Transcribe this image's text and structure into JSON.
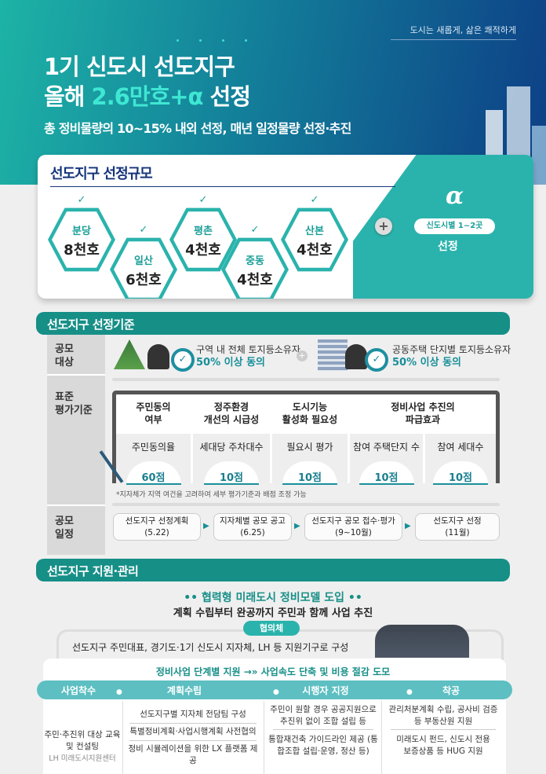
{
  "header": {
    "tagline": "도시는 새롭게, 삶은 쾌적하게",
    "title_line1": "1기 신도시 선도지구",
    "title_line2_prefix": "올해",
    "title_line2_highlight": "2.6만호+α",
    "title_line2_suffix": "선정",
    "subtitle": "총 정비물량의 10~15% 내외 선정, 매년 일정물량 선정·추진"
  },
  "scale": {
    "title": "선도지구 선정규모",
    "districts": [
      {
        "name": "분당",
        "value": "8천호"
      },
      {
        "name": "일산",
        "value": "6천호"
      },
      {
        "name": "평촌",
        "value": "4천호"
      },
      {
        "name": "중동",
        "value": "4천호"
      },
      {
        "name": "산본",
        "value": "4천호"
      }
    ],
    "alpha_symbol": "α",
    "alpha_pill": "신도시별 1~2곳",
    "alpha_label": "선정"
  },
  "criteria": {
    "title": "선도지구 선정기준",
    "target_label": [
      "공모",
      "대상"
    ],
    "targets": [
      {
        "text": "구역 내 전체 토지등소유자",
        "highlight": "50% 이상 동의"
      },
      {
        "text": "공동주택 단지별 토지등소유자",
        "highlight": "50% 이상 동의"
      }
    ],
    "eval_label": [
      "표준",
      "평가기준"
    ],
    "headers": [
      [
        "주민동의",
        "여부"
      ],
      [
        "정주환경",
        "개선의 시급성"
      ],
      [
        "도시기능",
        "활성화 필요성"
      ],
      [
        "정비사업 추진의",
        "파급효과"
      ]
    ],
    "items": [
      {
        "name": "주민동의율",
        "score": "60점"
      },
      {
        "name": "세대당 주차대수",
        "score": "10점"
      },
      {
        "name": "필요시 평가",
        "score": "10점"
      },
      {
        "name": "참여 주택단지 수",
        "score": "10점"
      },
      {
        "name": "참여 세대수",
        "score": "10점"
      }
    ],
    "note": "*지자체가 지역 여건을 고려하여 세부 평가기준과 배점 조정 가능",
    "schedule_label": [
      "공모",
      "일정"
    ],
    "schedule": [
      {
        "step": "선도지구 선정계획",
        "date": "(5.22)"
      },
      {
        "step": "지자체별 공모 공고",
        "date": "(6.25)"
      },
      {
        "step": "선도지구 공모 접수·평가",
        "date": "(9~10월)"
      },
      {
        "step": "선도지구 선정",
        "date": "(11월)"
      }
    ]
  },
  "support": {
    "title": "선도지구 지원·관리",
    "headline": "협력형 미래도시 정비모델 도입",
    "subheadline": "계획 수립부터 완공까지 주민과 함께 사업 추진",
    "council_pill": "협의체",
    "council_desc": "선도지구 주민대표, 경기도·1기 신도시 지자체, LH 등 지원기구로 구성",
    "stage_head_left": "정비사업 단계별 지원",
    "stage_head_arrow": "→»",
    "stage_head_right": "사업속도 단축 및 비용 절감 도모",
    "stages": [
      {
        "name": "사업착수",
        "items": [
          "주민·추진위 대상 교육 및 컨설팅"
        ],
        "sub": "LH 미래도시지원센터"
      },
      {
        "name": "계획수립",
        "items": [
          "선도지구별 지자체 전담팀 구성",
          "특별정비계획·사업시행계획 사전협의",
          "정비 시뮬레이션을 위한 LX 플랫폼 제공"
        ]
      },
      {
        "name": "시행자 지정",
        "items": [
          "주민이 원할 경우 공공지원으로 추진위 없이 조합 설립 등",
          "통합재건축 가이드라인 제공 (통합조합 설립·운영, 정산 등)"
        ]
      },
      {
        "name": "착공",
        "items": [
          "관리처분계획 수립, 공사비 검증 등 부동산원 지원",
          "미래도시 펀드, 신도시 전용 보증상품 등 HUG 지원"
        ]
      }
    ]
  },
  "colors": {
    "teal": "#168f87",
    "navy": "#0d3f86",
    "accent": "#3fe7d3",
    "stage_bar": "#5dbfc2"
  }
}
